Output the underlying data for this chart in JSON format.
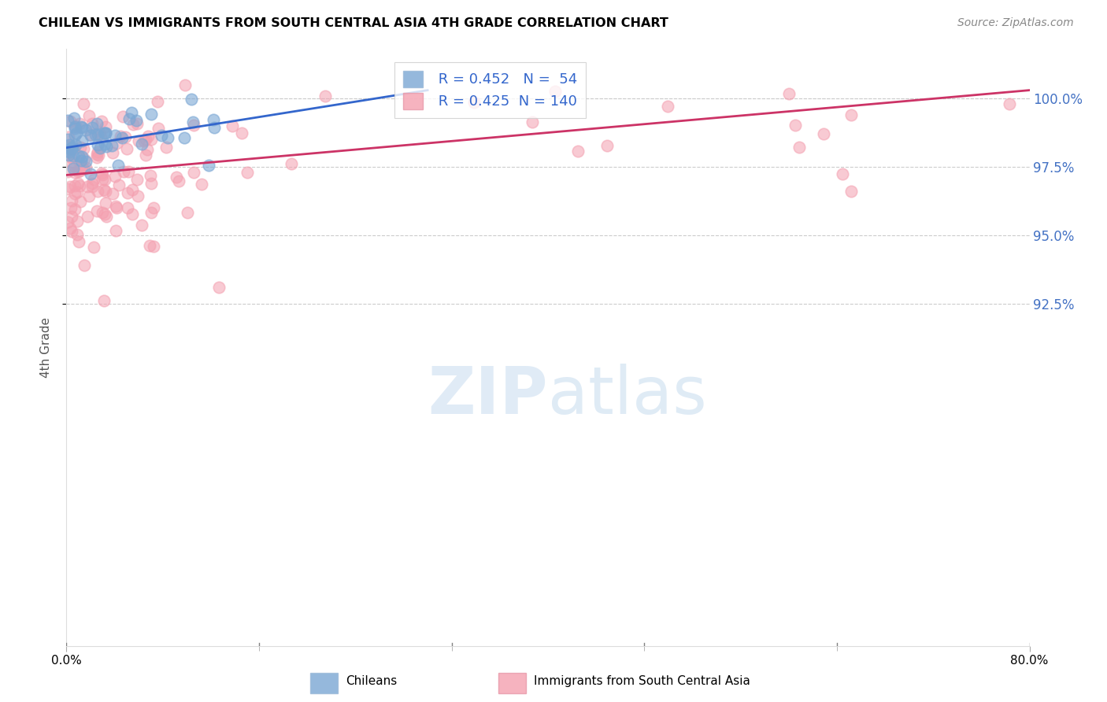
{
  "title": "CHILEAN VS IMMIGRANTS FROM SOUTH CENTRAL ASIA 4TH GRADE CORRELATION CHART",
  "source": "Source: ZipAtlas.com",
  "ylabel": "4th Grade",
  "xmin": 0.0,
  "xmax": 80.0,
  "ymin": 80.0,
  "ymax": 101.8,
  "yticks": [
    92.5,
    95.0,
    97.5,
    100.0
  ],
  "ytick_labels": [
    "92.5%",
    "95.0%",
    "97.5%",
    "100.0%"
  ],
  "blue_R": 0.452,
  "blue_N": 54,
  "pink_R": 0.425,
  "pink_N": 140,
  "blue_color": "#7BA7D4",
  "pink_color": "#F4A0B0",
  "blue_line_color": "#3366CC",
  "pink_line_color": "#CC3366",
  "legend_label_blue": "Chileans",
  "legend_label_pink": "Immigrants from South Central Asia",
  "blue_line_x0": 0.0,
  "blue_line_y0": 98.2,
  "blue_line_x1": 30.0,
  "blue_line_y1": 100.3,
  "pink_line_x0": 0.0,
  "pink_line_y0": 97.2,
  "pink_line_x1": 80.0,
  "pink_line_y1": 100.3
}
